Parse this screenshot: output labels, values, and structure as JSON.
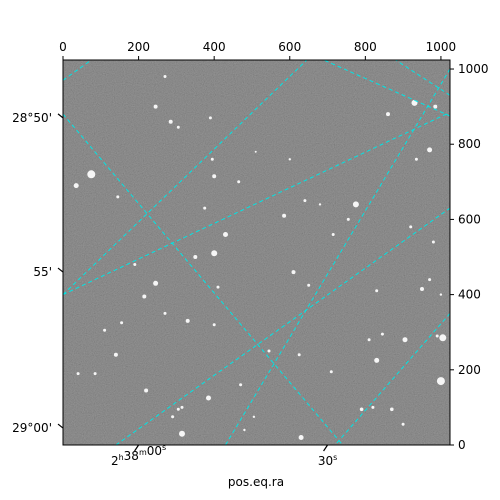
{
  "chart_data": {
    "type": "image",
    "image_size": [
      1024,
      1024
    ],
    "xlabel": "pos.eq.ra",
    "ylabel": "",
    "pixel_axes": {
      "top_ticks": [
        0,
        200,
        400,
        600,
        800,
        1000
      ],
      "right_ticks": [
        0,
        200,
        400,
        600,
        800,
        1000
      ]
    },
    "world_ticks": {
      "ra_bottom": [
        {
          "label_main": "2",
          "sup_h": "h",
          "mid": "38",
          "sup_m": "m",
          "tail": "00",
          "sup_s": "s",
          "x": 200
        },
        {
          "label_main": "30",
          "sup_s": "s",
          "x": 700
        }
      ],
      "dec_left": [
        {
          "label": "28°50'",
          "y": 870
        },
        {
          "label": "55'",
          "y": 460
        },
        {
          "label": "29°00'",
          "y": 45
        }
      ]
    },
    "grid": {
      "on": true,
      "color": "#00e5e5",
      "style": "dashed",
      "lines": [
        [
          [
            0,
            970
          ],
          [
            75,
            1024
          ]
        ],
        [
          [
            0,
            880
          ],
          [
            740,
            0
          ]
        ],
        [
          [
            0,
            400
          ],
          [
            645,
            1024
          ]
        ],
        [
          [
            0,
            400
          ],
          [
            1024,
            885
          ]
        ],
        [
          [
            140,
            0
          ],
          [
            1024,
            630
          ]
        ],
        [
          [
            1024,
            875
          ],
          [
            690,
            1024
          ]
        ],
        [
          [
            430,
            0
          ],
          [
            1024,
            1000
          ]
        ],
        [
          [
            1024,
            350
          ],
          [
            720,
            0
          ]
        ],
        [
          [
            1024,
            930
          ],
          [
            880,
            1024
          ]
        ]
      ]
    },
    "stars": [
      [
        75,
        720,
        4
      ],
      [
        35,
        690,
        2.5
      ],
      [
        245,
        900,
        2
      ],
      [
        285,
        860,
        2
      ],
      [
        305,
        845,
        1.5
      ],
      [
        400,
        715,
        2
      ],
      [
        395,
        760,
        1.5
      ],
      [
        465,
        700,
        1.5
      ],
      [
        510,
        780,
        1
      ],
      [
        600,
        760,
        1.2
      ],
      [
        680,
        640,
        1.2
      ],
      [
        930,
        910,
        3
      ],
      [
        860,
        880,
        2
      ],
      [
        985,
        900,
        2
      ],
      [
        970,
        785,
        2.5
      ],
      [
        775,
        640,
        3
      ],
      [
        715,
        560,
        1.5
      ],
      [
        585,
        610,
        2
      ],
      [
        430,
        560,
        2.5
      ],
      [
        375,
        630,
        1.5
      ],
      [
        245,
        430,
        2.5
      ],
      [
        350,
        500,
        2
      ],
      [
        400,
        510,
        3
      ],
      [
        410,
        420,
        1.5
      ],
      [
        610,
        460,
        2
      ],
      [
        650,
        425,
        1.5
      ],
      [
        950,
        415,
        2
      ],
      [
        970,
        440,
        1.5
      ],
      [
        1000,
        400,
        1.2
      ],
      [
        830,
        410,
        1.5
      ],
      [
        905,
        280,
        2.5
      ],
      [
        1005,
        285,
        3.5
      ],
      [
        845,
        295,
        1.5
      ],
      [
        810,
        280,
        1.5
      ],
      [
        545,
        250,
        1.5
      ],
      [
        400,
        320,
        1.5
      ],
      [
        330,
        330,
        2
      ],
      [
        270,
        350,
        1.5
      ],
      [
        215,
        395,
        2
      ],
      [
        110,
        305,
        1.5
      ],
      [
        140,
        240,
        2
      ],
      [
        40,
        190,
        1.5
      ],
      [
        85,
        190,
        1.5
      ],
      [
        220,
        145,
        2
      ],
      [
        385,
        125,
        2.5
      ],
      [
        290,
        75,
        1.5
      ],
      [
        305,
        95,
        1.5
      ],
      [
        315,
        100,
        1.5
      ],
      [
        470,
        160,
        1.5
      ],
      [
        790,
        95,
        1.8
      ],
      [
        820,
        100,
        1.5
      ],
      [
        870,
        95,
        1.8
      ],
      [
        625,
        240,
        1.5
      ],
      [
        710,
        195,
        1.5
      ],
      [
        830,
        225,
        2.5
      ],
      [
        1000,
        170,
        4
      ],
      [
        990,
        290,
        1.5
      ],
      [
        145,
        660,
        1.5
      ],
      [
        900,
        55,
        1.5
      ],
      [
        630,
        20,
        2.5
      ],
      [
        315,
        30,
        3
      ],
      [
        755,
        600,
        1.5
      ],
      [
        640,
        650,
        1.5
      ],
      [
        935,
        760,
        1.5
      ],
      [
        190,
        480,
        1.5
      ],
      [
        270,
        980,
        1.5
      ],
      [
        920,
        580,
        1.5
      ],
      [
        980,
        540,
        1.5
      ],
      [
        390,
        870,
        1.5
      ],
      [
        155,
        325,
        1.5
      ],
      [
        480,
        40,
        1.2
      ],
      [
        505,
        75,
        1.2
      ]
    ]
  }
}
